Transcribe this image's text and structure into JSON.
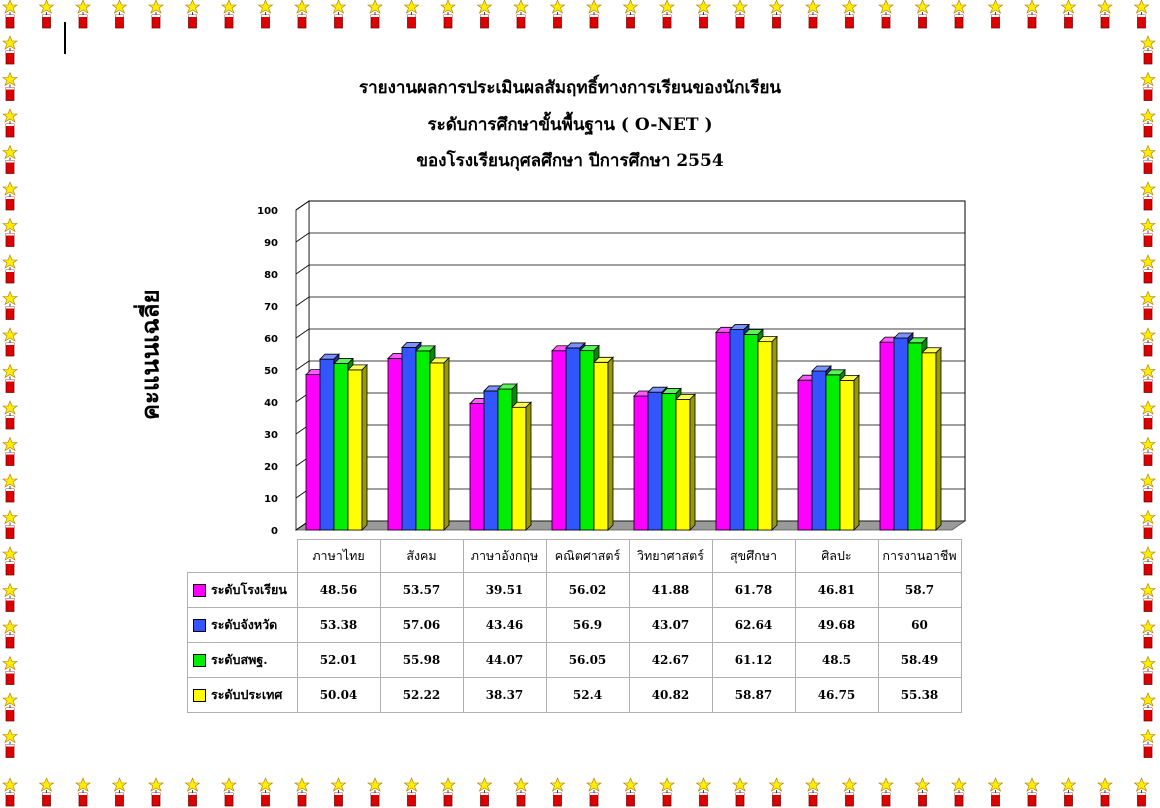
{
  "title_lines": [
    "รายงานผลการประเมินผลสัมฤทธิ์ทางการเรียนของนักเรียน",
    "ระดับการศึกษาขั้นพื้นฐาน  ( O-NET )",
    "ของโรงเรียนกุศลศึกษา ปีการศึกษา 2554"
  ],
  "chart_data": {
    "type": "bar",
    "title": "รายงานผลการประเมินผลสัมฤทธิ์ทางการเรียนของนักเรียน ระดับการศึกษาขั้นพื้นฐาน ( O-NET ) ของโรงเรียนกุศลศึกษา ปีการศึกษา 2554",
    "ylabel": "คะแนนเฉลี่ย",
    "xlabel": "",
    "ylim": [
      0,
      100
    ],
    "yticks": [
      0,
      10,
      20,
      30,
      40,
      50,
      60,
      70,
      80,
      90,
      100
    ],
    "grid": true,
    "legend": "table-left",
    "categories": [
      "ภาษาไทย",
      "สังคม",
      "ภาษาอังกฤษ",
      "คณิตศาสตร์",
      "วิทยาศาสตร์",
      "สุขศึกษา",
      "ศิลปะ",
      "การงานอาชีพ"
    ],
    "series": [
      {
        "name": "ระดับโรงเรียน",
        "color": "#ff00ff",
        "values": [
          48.56,
          53.57,
          39.51,
          56.02,
          41.88,
          61.78,
          46.81,
          58.7
        ]
      },
      {
        "name": "ระดับจังหวัด",
        "color": "#3355ff",
        "values": [
          53.38,
          57.06,
          43.46,
          56.9,
          43.07,
          62.64,
          49.68,
          60
        ]
      },
      {
        "name": "ระดับสพฐ.",
        "color": "#00ee00",
        "values": [
          52.01,
          55.98,
          44.07,
          56.05,
          42.67,
          61.12,
          48.5,
          58.49
        ]
      },
      {
        "name": "ระดับประเทศ",
        "color": "#ffff00",
        "values": [
          50.04,
          52.22,
          38.37,
          52.4,
          40.82,
          58.87,
          46.75,
          55.38
        ]
      }
    ]
  },
  "table_values": [
    [
      "48.56",
      "53.57",
      "39.51",
      "56.02",
      "41.88",
      "61.78",
      "46.81",
      "58.7"
    ],
    [
      "53.38",
      "57.06",
      "43.46",
      "56.9",
      "43.07",
      "62.64",
      "49.68",
      "60"
    ],
    [
      "52.01",
      "55.98",
      "44.07",
      "56.05",
      "42.67",
      "61.12",
      "48.5",
      "58.49"
    ],
    [
      "50.04",
      "52.22",
      "38.37",
      "52.4",
      "40.82",
      "58.87",
      "46.75",
      "55.38"
    ]
  ]
}
